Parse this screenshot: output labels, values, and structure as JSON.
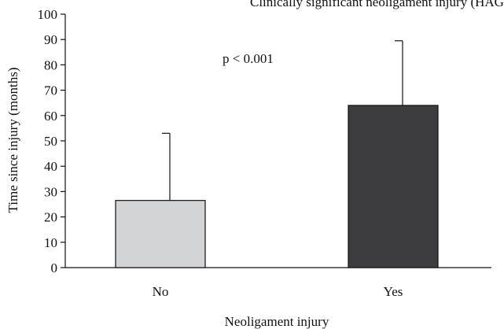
{
  "chart_data": {
    "type": "bar",
    "categories": [
      "No",
      "Yes"
    ],
    "values": [
      26.5,
      64
    ],
    "error_plus": [
      26.5,
      25.5
    ],
    "bar_colors": [
      "#d3d4d6",
      "#3d3d3f"
    ],
    "title": "Clinically significant neoligament injury (HAG lesion)",
    "xlabel": "Neoligament injury",
    "ylabel": "Time since injury (months)",
    "ylim": [
      0,
      100
    ],
    "yticks": [
      0,
      10,
      20,
      30,
      40,
      50,
      60,
      70,
      80,
      90,
      100
    ],
    "annotation": "p < 0.001",
    "grid": false
  }
}
